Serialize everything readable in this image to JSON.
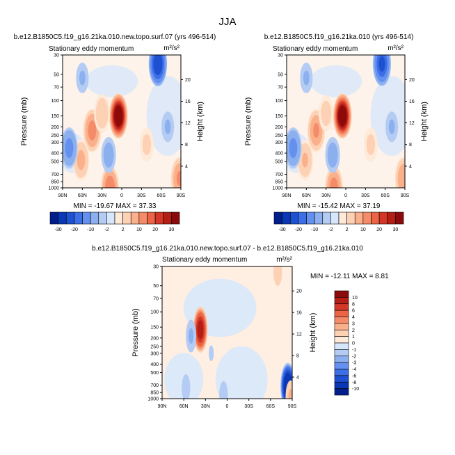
{
  "page": {
    "title": "JJA"
  },
  "chart_data": [
    {
      "type": "heatmap",
      "title": "b.e12.B1850C5.f19_g16.21ka.010.new.topo.surf.07 (yrs 496-514)",
      "subtitle": "Stationary eddy momentum",
      "units": "m²/s²",
      "xlabel": "",
      "ylabel": "Pressure (mb)",
      "ylabel_right": "Height (km)",
      "x_ticks": [
        "90N",
        "60N",
        "30N",
        "0",
        "30S",
        "60S",
        "90S"
      ],
      "x_range": [
        90,
        -90
      ],
      "y_ticks": [
        1000,
        850,
        700,
        500,
        400,
        300,
        250,
        200,
        150,
        100,
        70,
        50,
        30
      ],
      "y_range": [
        1000,
        30
      ],
      "y_scale": "log",
      "y_right_ticks": [
        4,
        8,
        12,
        16,
        20
      ],
      "stats_text": "MIN = -19.67  MAX = 37.33",
      "min": -19.67,
      "max": 37.33,
      "features": [
        {
          "lat": 5,
          "p": 150,
          "value": 37.3
        },
        {
          "lat": 45,
          "p": 220,
          "value": 12
        },
        {
          "lat": 62,
          "p": 480,
          "value": 6
        },
        {
          "lat": 30,
          "p": 140,
          "value": 4
        },
        {
          "lat": 18,
          "p": 990,
          "value": 14
        },
        {
          "lat": -88,
          "p": 780,
          "value": 10
        },
        {
          "lat": -38,
          "p": 320,
          "value": 2.5
        },
        {
          "lat": -55,
          "p": 38,
          "value": -19.7
        },
        {
          "lat": 80,
          "p": 350,
          "value": -6
        },
        {
          "lat": 20,
          "p": 420,
          "value": -3
        },
        {
          "lat": 60,
          "p": 55,
          "value": -2
        },
        {
          "lat": -70,
          "p": 200,
          "value": -2
        }
      ]
    },
    {
      "type": "heatmap",
      "title": "b.e12.B1850C5.f19_g16.21ka.010 (yrs 496-514)",
      "subtitle": "Stationary eddy momentum",
      "units": "m²/s²",
      "xlabel": "",
      "ylabel": "Pressure (mb)",
      "ylabel_right": "Height (km)",
      "x_ticks": [
        "90N",
        "60N",
        "30N",
        "0",
        "30S",
        "60S",
        "90S"
      ],
      "x_range": [
        90,
        -90
      ],
      "y_ticks": [
        1000,
        850,
        700,
        500,
        400,
        300,
        250,
        200,
        150,
        100,
        70,
        50,
        30
      ],
      "y_range": [
        1000,
        30
      ],
      "y_scale": "log",
      "y_right_ticks": [
        4,
        8,
        12,
        16,
        20
      ],
      "stats_text": "MIN = -15.42  MAX = 37.19",
      "min": -15.42,
      "max": 37.19,
      "features": [
        {
          "lat": 5,
          "p": 150,
          "value": 37.2
        },
        {
          "lat": 45,
          "p": 220,
          "value": 10
        },
        {
          "lat": 62,
          "p": 480,
          "value": 5
        },
        {
          "lat": 30,
          "p": 140,
          "value": 3
        },
        {
          "lat": 18,
          "p": 990,
          "value": 12
        },
        {
          "lat": -88,
          "p": 780,
          "value": 9
        },
        {
          "lat": -38,
          "p": 320,
          "value": 2.5
        },
        {
          "lat": -55,
          "p": 38,
          "value": -15.4
        },
        {
          "lat": 80,
          "p": 350,
          "value": -6
        },
        {
          "lat": 20,
          "p": 420,
          "value": -3
        },
        {
          "lat": 60,
          "p": 55,
          "value": -2
        },
        {
          "lat": -70,
          "p": 200,
          "value": -2
        }
      ]
    },
    {
      "type": "heatmap",
      "title": "b.e12.B1850C5.f19_g16.21ka.010.new.topo.surf.07 - b.e12.B1850C5.f19_g16.21ka.010",
      "subtitle": "Stationary eddy momentum",
      "units": "m²/s²",
      "xlabel": "",
      "ylabel": "Pressure (mb)",
      "ylabel_right": "Height (km)",
      "x_ticks": [
        "90N",
        "60N",
        "30N",
        "0",
        "30S",
        "60S",
        "90S"
      ],
      "x_range": [
        90,
        -90
      ],
      "y_ticks": [
        1000,
        850,
        700,
        500,
        400,
        300,
        250,
        200,
        150,
        100,
        70,
        50,
        30
      ],
      "y_range": [
        1000,
        30
      ],
      "y_scale": "log",
      "y_right_ticks": [
        4,
        8,
        12,
        16,
        20
      ],
      "stats_text": "MIN = -12.11  MAX =   8.81",
      "min": -12.11,
      "max": 8.81,
      "features": [
        {
          "lat": 37,
          "p": 160,
          "value": 8.8
        },
        {
          "lat": 50,
          "p": 190,
          "value": -2
        },
        {
          "lat": 57,
          "p": 750,
          "value": -1.5
        },
        {
          "lat": 22,
          "p": 300,
          "value": -1
        },
        {
          "lat": 5,
          "p": 900,
          "value": -1.5
        },
        {
          "lat": -70,
          "p": 35,
          "value": 1.5
        },
        {
          "lat": -84,
          "p": 720,
          "value": -12.1
        },
        {
          "lat": -88,
          "p": 950,
          "value": 2
        }
      ]
    }
  ],
  "colorbars": [
    {
      "labels": [
        "-30",
        "-20",
        "-10",
        "-2",
        "2",
        "10",
        "20",
        "30"
      ]
    },
    {
      "labels": [
        "-30",
        "-20",
        "-10",
        "-2",
        "2",
        "10",
        "20",
        "30"
      ]
    },
    {
      "labels": [
        "10",
        "8",
        "6",
        "4",
        "3",
        "2",
        "1",
        "0",
        "-1",
        "-2",
        "-3",
        "-4",
        "-6",
        "-8",
        "-10"
      ]
    }
  ],
  "colors": {
    "scale": [
      "#001e8c",
      "#0a37b4",
      "#1e50d2",
      "#3c6ee6",
      "#6490f0",
      "#8cafee",
      "#b4ccf4",
      "#d6e6fb",
      "#ffe9d8",
      "#fdd2b4",
      "#fbb08c",
      "#f58c69",
      "#eb6446",
      "#d23728",
      "#b41e14",
      "#8c0a0a"
    ]
  }
}
